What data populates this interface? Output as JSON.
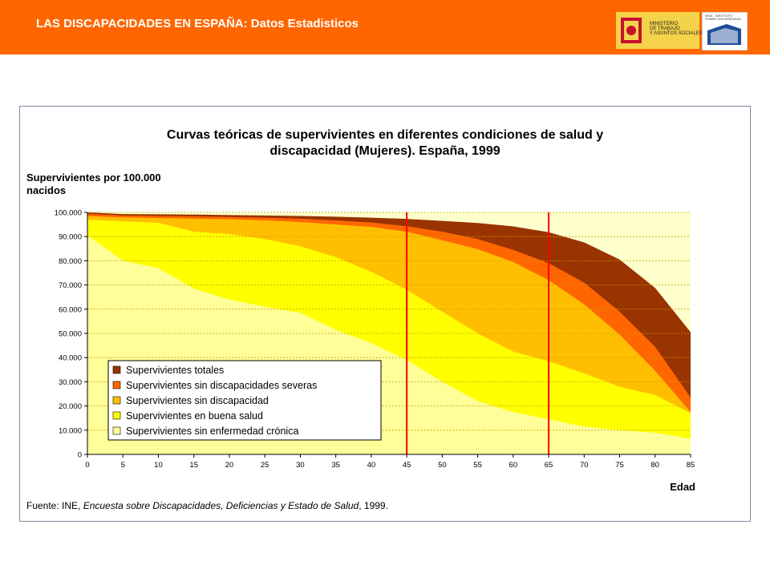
{
  "header": {
    "title": "LAS DISCAPACIDADES EN ESPAÑA: Datos Estadisticos",
    "logo_ministry": "MINISTERIO\nDE TRABAJO\nY ASUNTOS SOCIALES",
    "logo_imserso": "INSS - INSTITUTO\nSOBRE DISCAPACIDAD",
    "colors": {
      "bar": "#ff6600",
      "text": "#ffffff"
    }
  },
  "chart_data": {
    "type": "area",
    "title_line1": "Curvas teóricas de supervivientes en diferentes condiciones de salud y",
    "title_line2": "discapacidad (Mujeres). España, 1999",
    "ylabel_line1": "Supervivientes por 100.000",
    "ylabel_line2": "nacidos",
    "xlabel": "Edad",
    "ylim": [
      0,
      100000
    ],
    "xlim": [
      0,
      85
    ],
    "y_ticks": [
      "0",
      "10.000",
      "20.000",
      "30.000",
      "40.000",
      "50.000",
      "60.000",
      "70.000",
      "80.000",
      "90.000",
      "100.000"
    ],
    "x": [
      0,
      5,
      10,
      15,
      20,
      25,
      30,
      35,
      40,
      45,
      50,
      55,
      60,
      65,
      70,
      75,
      80,
      85
    ],
    "series": [
      {
        "name": "Supervivientes totales",
        "color": "#993300",
        "values": [
          100000,
          99300,
          99200,
          99100,
          98900,
          98700,
          98500,
          98200,
          97800,
          97300,
          96500,
          95600,
          94200,
          91800,
          87600,
          80500,
          68800,
          50500
        ]
      },
      {
        "name": "Supervivientes sin discapacidades severas",
        "color": "#ff6600",
        "values": [
          99400,
          98700,
          98500,
          98400,
          98100,
          97800,
          97400,
          96700,
          95800,
          94300,
          92000,
          89000,
          84500,
          79000,
          71000,
          59000,
          44500,
          23500
        ]
      },
      {
        "name": "Supervivientes sin discapacidad",
        "color": "#ffbf00",
        "values": [
          98500,
          97900,
          97700,
          97400,
          97200,
          96700,
          96000,
          95000,
          94000,
          92000,
          88500,
          84800,
          79500,
          72000,
          62000,
          49500,
          34500,
          17500
        ]
      },
      {
        "name": "Supervivientes en buena salud",
        "color": "#ffff00",
        "values": [
          97000,
          96300,
          95700,
          92000,
          91000,
          89000,
          86000,
          81500,
          75500,
          68000,
          59000,
          50000,
          42500,
          38500,
          33500,
          28000,
          24500,
          17000
        ]
      },
      {
        "name": "Supervivientes sin enfermedad crónica",
        "color": "#ffff99",
        "values": [
          90500,
          80000,
          77000,
          68500,
          64000,
          61000,
          58500,
          51500,
          46000,
          39000,
          30000,
          22000,
          17500,
          14500,
          11500,
          10000,
          9000,
          6500
        ]
      }
    ],
    "vertical_markers": [
      45,
      65
    ],
    "marker_color": "#ff0000",
    "plot_background": "#ffffcc",
    "grid": true,
    "legend_placement": "bottom-left",
    "source_prefix": "Fuente: INE, ",
    "source_italic": "Encuesta sobre Discapacidades, Deficiencias y Estado de Salud",
    "source_suffix": ", 1999."
  }
}
